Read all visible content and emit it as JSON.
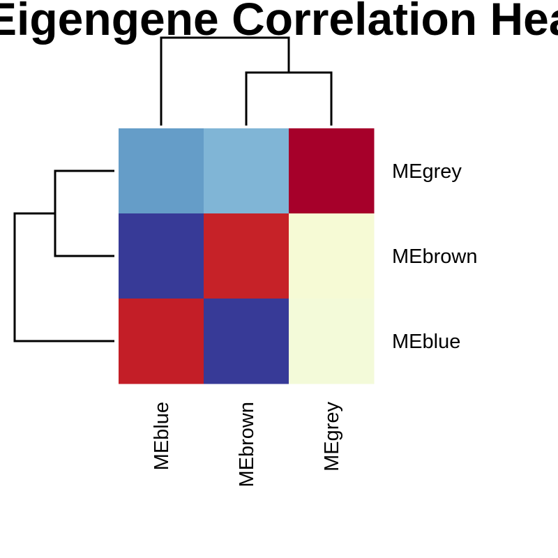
{
  "chart_data": {
    "type": "heatmap",
    "title": "Eigengene Correlation Heatmap",
    "columns": [
      "MEblue",
      "MEbrown",
      "MEgrey"
    ],
    "rows": [
      "MEgrey",
      "MEbrown",
      "MEblue"
    ],
    "cell_colors": [
      [
        "#659DC8",
        "#80B5D6",
        "#A6002A"
      ],
      [
        "#373A97",
        "#C62228",
        "#F6FAD5"
      ],
      [
        "#C31E27",
        "#373A97",
        "#F3FAD9"
      ]
    ],
    "color_scale": [
      "#313695",
      "#4575B4",
      "#74ADD1",
      "#E0F3F8",
      "#FFFFBF",
      "#FEE090",
      "#F46D43",
      "#D73027",
      "#A50026"
    ],
    "row_dendrogram": true,
    "column_dendrogram": true,
    "legend": "none"
  },
  "colors": {
    "background": "#FFFFFF",
    "lines": "#000000"
  }
}
